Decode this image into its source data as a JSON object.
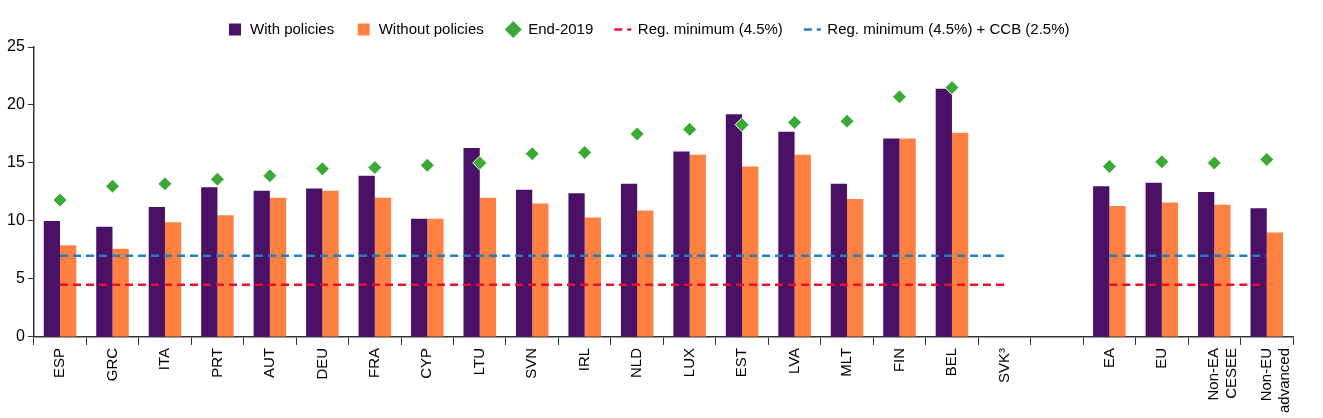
{
  "chart_data": {
    "type": "bar",
    "categories": [
      "ESP",
      "GRC",
      "ITA",
      "PRT",
      "AUT",
      "DEU",
      "FRA",
      "CYP",
      "LTU",
      "SVN",
      "IRL",
      "NLD",
      "LUX",
      "EST",
      "LVA",
      "MLT",
      "FIN",
      "BEL",
      "SVK³",
      null,
      "EA",
      "EU",
      "Non-EA CESEE",
      "Non-EU advanced"
    ],
    "series": [
      {
        "name": "With policies",
        "color": "#4a1166",
        "values": [
          10.0,
          9.5,
          11.2,
          12.9,
          12.6,
          12.8,
          13.9,
          10.2,
          16.3,
          12.7,
          12.4,
          13.2,
          16.0,
          19.2,
          17.7,
          13.2,
          17.1,
          21.4,
          null,
          null,
          13.0,
          13.3,
          12.5,
          11.1
        ]
      },
      {
        "name": "Without policies",
        "color": "#ff8040",
        "values": [
          7.9,
          7.6,
          9.9,
          10.5,
          12.0,
          12.6,
          12.0,
          10.2,
          12.0,
          11.5,
          10.3,
          10.9,
          15.7,
          14.7,
          15.7,
          11.9,
          17.1,
          17.6,
          null,
          null,
          11.3,
          11.6,
          11.4,
          9.0
        ]
      },
      {
        "name": "End-2019",
        "type": "scatter",
        "marker": "diamond",
        "color": "#3aaa35",
        "values": [
          11.8,
          13.0,
          13.2,
          13.6,
          13.9,
          14.5,
          14.6,
          14.8,
          15.0,
          15.8,
          15.9,
          17.5,
          17.9,
          18.3,
          18.5,
          18.6,
          20.7,
          21.5,
          null,
          null,
          14.7,
          15.1,
          15.0,
          15.3
        ]
      },
      {
        "name": "Reg. minimum (4.5%)",
        "type": "line",
        "line_style": "dashed",
        "marker": "none",
        "color": "#e8112d",
        "values": [
          4.5,
          4.5,
          4.5,
          4.5,
          4.5,
          4.5,
          4.5,
          4.5,
          4.5,
          4.5,
          4.5,
          4.5,
          4.5,
          4.5,
          4.5,
          4.5,
          4.5,
          4.5,
          4.5,
          null,
          4.5,
          4.5,
          4.5,
          4.5
        ]
      },
      {
        "name": "Reg. minimum (4.5%) + CCB (2.5%)",
        "type": "line",
        "line_style": "dashed",
        "marker": "none",
        "color": "#1f7fbf",
        "values": [
          7,
          7,
          7,
          7,
          7,
          7,
          7,
          7,
          7,
          7,
          7,
          7,
          7,
          7,
          7,
          7,
          7,
          7,
          7,
          null,
          7,
          7,
          7,
          7
        ]
      }
    ],
    "ylim": [
      0,
      25
    ],
    "yticks": [
      0,
      5,
      10,
      15,
      20,
      25
    ],
    "grid": false,
    "legend": "top"
  }
}
